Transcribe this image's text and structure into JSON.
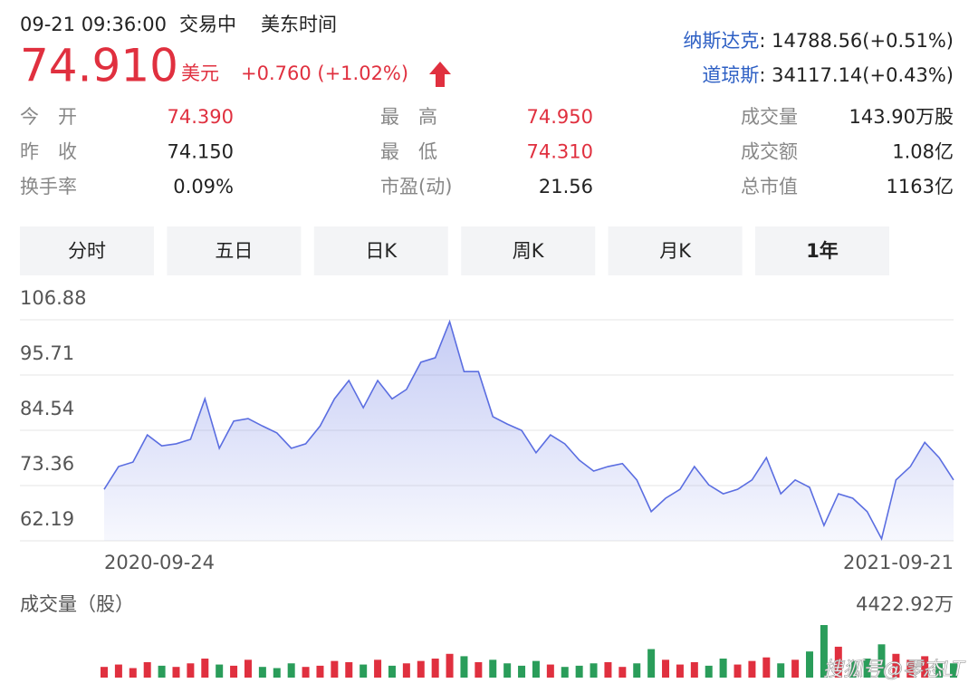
{
  "header": {
    "time": "09-21 09:36:00",
    "status": "交易中",
    "timezone": "美东时间",
    "price": "74.910",
    "currency": "美元",
    "change": "+0.760 (+1.02%)"
  },
  "indices": [
    {
      "name": "纳斯达克",
      "value": ": 14788.56(+0.51%)"
    },
    {
      "name": "道琼斯",
      "value": ": 34117.14(+0.43%)"
    }
  ],
  "stats": [
    [
      {
        "label": "今　开",
        "value": "74.390",
        "color": "#e0303f"
      },
      {
        "label": "最　高",
        "value": "74.950",
        "color": "#e0303f"
      },
      {
        "label": "成交量",
        "value": "143.90万股",
        "color": "#222222"
      }
    ],
    [
      {
        "label": "昨　收",
        "value": "74.150",
        "color": "#222222"
      },
      {
        "label": "最　低",
        "value": "74.310",
        "color": "#e0303f"
      },
      {
        "label": "成交额",
        "value": "1.08亿",
        "color": "#222222"
      }
    ],
    [
      {
        "label": "换手率",
        "value": "0.09%",
        "color": "#222222"
      },
      {
        "label": "市盈(动)",
        "value": "21.56",
        "color": "#222222"
      },
      {
        "label": "总市值",
        "value": "1163亿",
        "color": "#222222"
      }
    ]
  ],
  "tabs": [
    "分时",
    "五日",
    "日K",
    "周K",
    "月K",
    "1年"
  ],
  "active_tab": 5,
  "watermark": "搜狐号@零态LT",
  "chart_data": {
    "type": "line",
    "color": "#5b6ee1",
    "grid": true,
    "ylim": [
      62.19,
      106.88
    ],
    "yticks": [
      106.88,
      95.71,
      84.54,
      73.36,
      62.19
    ],
    "categories": [
      "2020-09-24",
      null,
      null,
      null,
      null,
      null,
      null,
      null,
      null,
      null,
      null,
      null,
      null,
      null,
      null,
      null,
      null,
      null,
      null,
      null,
      null,
      null,
      null,
      null,
      null,
      null,
      null,
      null,
      null,
      null,
      null,
      null,
      null,
      null,
      null,
      null,
      null,
      null,
      null,
      null,
      null,
      null,
      null,
      null,
      null,
      null,
      null,
      null,
      null,
      null,
      null,
      null,
      null,
      null,
      null,
      null,
      null,
      null,
      null,
      "2021-09-21"
    ],
    "series": [
      {
        "values": [
          72.6,
          77.2,
          78.1,
          83.6,
          81.4,
          81.8,
          82.7,
          90.9,
          80.9,
          86.4,
          86.9,
          85.4,
          84.0,
          80.9,
          81.8,
          85.4,
          90.9,
          94.6,
          89.1,
          94.6,
          90.9,
          92.8,
          98.3,
          99.2,
          106.5,
          96.4,
          96.4,
          87.3,
          85.8,
          84.5,
          80.0,
          83.6,
          81.8,
          78.5,
          76.3,
          77.2,
          77.8,
          74.5,
          68.1,
          70.8,
          72.6,
          77.2,
          73.5,
          71.7,
          72.6,
          74.5,
          79.0,
          71.7,
          74.5,
          73.0,
          65.3,
          71.7,
          70.8,
          68.1,
          62.6,
          74.5,
          77.2,
          82.1,
          79.0,
          74.5
        ]
      }
    ],
    "volume": {
      "title": "成交量（股）",
      "up_color": "#e0303f",
      "down_color": "#2a9d5a",
      "ylim": [
        0,
        4422.92
      ],
      "yticks": [
        {
          "value": 4422.92,
          "label": "4422.92万"
        }
      ],
      "values": [
        900,
        1100,
        800,
        1300,
        1000,
        900,
        1200,
        1600,
        1100,
        1000,
        1500,
        900,
        800,
        1200,
        900,
        1000,
        1400,
        1300,
        1100,
        1500,
        1000,
        1200,
        1400,
        1600,
        2000,
        1800,
        1300,
        1500,
        1200,
        1000,
        1400,
        1100,
        900,
        1000,
        1200,
        1300,
        900,
        1200,
        2400,
        1500,
        1100,
        1300,
        1000,
        1600,
        1100,
        1400,
        1700,
        1200,
        1500,
        2200,
        4422.92,
        2600,
        1400,
        1600,
        2800,
        2000,
        1500,
        1800,
        1300,
        1200
      ]
    }
  }
}
